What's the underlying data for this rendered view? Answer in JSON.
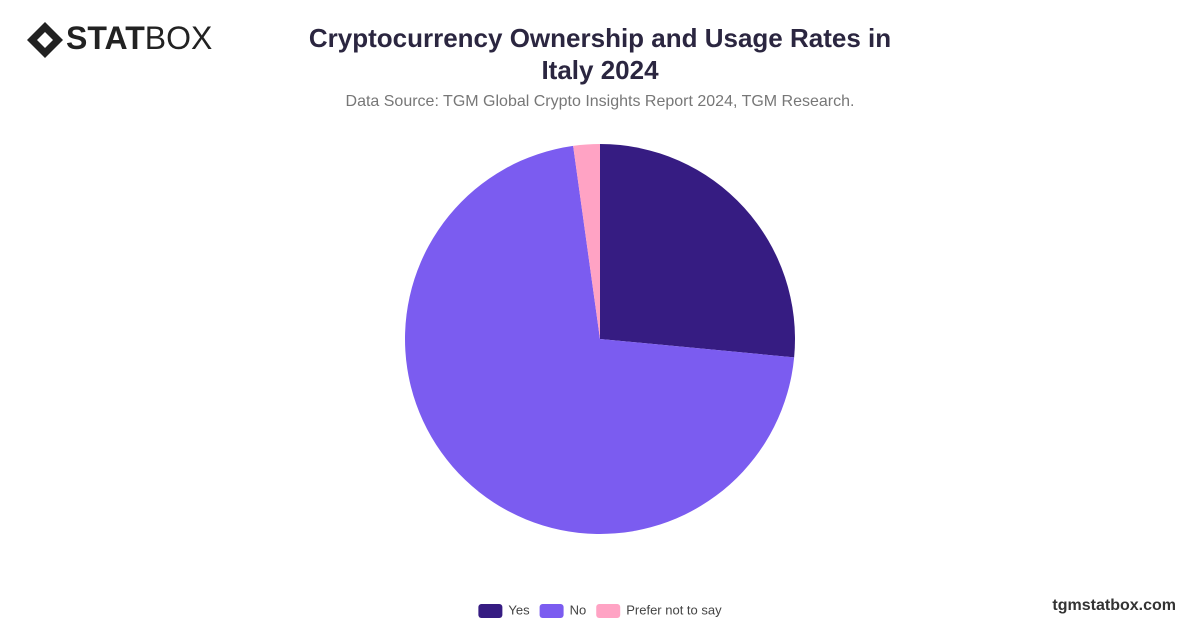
{
  "logo": {
    "bold": "STAT",
    "light": "BOX"
  },
  "footer": "tgmstatbox.com",
  "chart_data": {
    "type": "pie",
    "title": "Cryptocurrency Ownership and Usage Rates in Italy 2024",
    "subtitle": "Data Source: TGM Global Crypto Insights Report 2024, TGM Research.",
    "categories": [
      "Yes",
      "No",
      "Prefer not to say"
    ],
    "values": [
      26.5,
      71.3,
      2.2
    ],
    "colors": [
      "#361c82",
      "#7b5cf0",
      "#ffa3c4"
    ],
    "legend": "bottom"
  }
}
